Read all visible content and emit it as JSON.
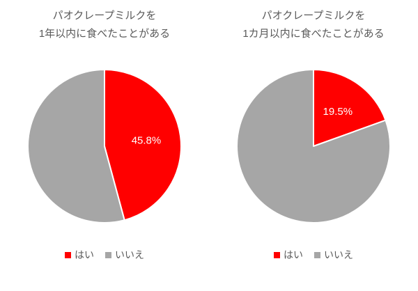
{
  "figure": {
    "background": "#ffffff"
  },
  "styles": {
    "title_color": "#595959",
    "legend_text_color": "#595959",
    "data_label_color": "#ffffff",
    "slice_border_color": "#ffffff",
    "yes_color": "#ff0000",
    "no_color": "#a6a6a6"
  },
  "chart_data": [
    {
      "type": "pie",
      "title": "パオクレープミルクを 1年以内に食べたことがある",
      "title_lines": [
        "パオクレープミルクを",
        "1年以内に食べたことがある"
      ],
      "labels": [
        "はい",
        "いいえ"
      ],
      "values": [
        45.8,
        54.2
      ],
      "colors": [
        "#ff0000",
        "#a6a6a6"
      ],
      "data_labels": [
        "45.8%",
        ""
      ],
      "start_angle_deg": 0,
      "direction": "clockwise",
      "legend_position": "bottom"
    },
    {
      "type": "pie",
      "title": "パオクレープミルクを 1カ月以内に食べたことがある",
      "title_lines": [
        "パオクレープミルクを",
        "1カ月以内に食べたことがある"
      ],
      "labels": [
        "はい",
        "いいえ"
      ],
      "values": [
        19.5,
        80.5
      ],
      "colors": [
        "#ff0000",
        "#a6a6a6"
      ],
      "data_labels": [
        "19.5%",
        ""
      ],
      "start_angle_deg": 0,
      "direction": "clockwise",
      "legend_position": "bottom"
    }
  ]
}
